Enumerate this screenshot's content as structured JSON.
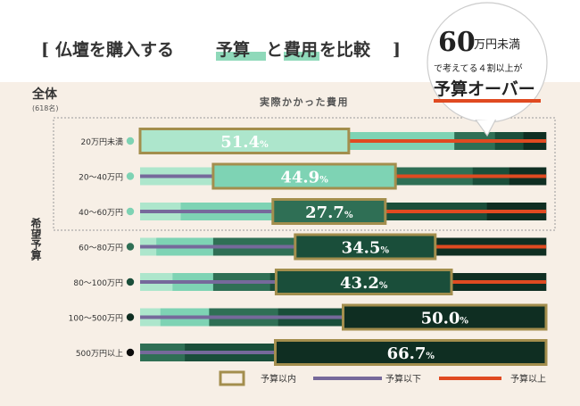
{
  "header": {
    "bracket_open": "[",
    "title_pre": "仏壇を購入する",
    "title_mid": "予算",
    "title_and": "と",
    "title_hl2": "費用",
    "title_post": "を比較",
    "bracket_close": "]"
  },
  "callout": {
    "big_number": "60",
    "big_suffix": "万円未満",
    "line2": "で考えてる４割以上が",
    "line3": "予算オーバー"
  },
  "labels": {
    "total": "全体",
    "total_count": "(618名)",
    "column_header": "実際かかった費用",
    "side_label": "希望予算"
  },
  "colors": {
    "segments": [
      "#ade6cc",
      "#7ed3b4",
      "#2f6f55",
      "#1a4e3a",
      "#0f2e22"
    ],
    "under_line": "#76699b",
    "over_line": "#e04a21",
    "box_border": "#a38e4d",
    "label_dots": [
      "#7ed3b4",
      "#7ed3b4",
      "#7ed3b4",
      "#2f6f55",
      "#1a4e3a",
      "#0f2e22",
      "#0c0c0c"
    ]
  },
  "chart_data": {
    "type": "bar",
    "orientation": "horizontal-stacked",
    "categories": [
      "20万円未満",
      "20～40万円",
      "40～60万円",
      "60～80万円",
      "80～100万円",
      "100～500万円",
      "500万円以上"
    ],
    "within_budget_pct": [
      "51.4",
      "44.9",
      "27.7",
      "34.5",
      "43.2",
      "50.0",
      "66.7"
    ],
    "within_budget_unit": "%",
    "series": [
      {
        "name": "予算以下",
        "values": [
          0,
          18,
          32.7,
          38.2,
          33.5,
          50.0,
          33.3
        ]
      },
      {
        "name": "予算以内",
        "values": [
          51.4,
          44.9,
          27.7,
          34.5,
          43.2,
          50.0,
          66.7
        ]
      },
      {
        "name": "予算以上",
        "values": [
          48.6,
          37.1,
          39.6,
          27.3,
          23.3,
          0,
          0
        ]
      }
    ],
    "segments": [
      [
        51.4,
        26.0,
        10.0,
        7.0,
        5.6
      ],
      [
        18.0,
        44.9,
        19.0,
        9.0,
        9.1
      ],
      [
        10.0,
        22.7,
        27.7,
        25.0,
        14.6
      ],
      [
        4.0,
        14.0,
        20.0,
        34.5,
        27.5
      ],
      [
        8.0,
        10.0,
        14.0,
        43.2,
        24.8
      ],
      [
        5.0,
        12.0,
        17.0,
        16.0,
        50.0
      ],
      [
        0,
        0,
        11.0,
        22.3,
        66.7
      ]
    ],
    "box_segment_index": [
      0,
      1,
      2,
      3,
      3,
      4,
      4
    ],
    "legend": [
      {
        "label": "予算以内",
        "style": "box"
      },
      {
        "label": "予算以下",
        "style": "under"
      },
      {
        "label": "予算以上",
        "style": "over"
      }
    ],
    "xlim": [
      0,
      100
    ]
  }
}
